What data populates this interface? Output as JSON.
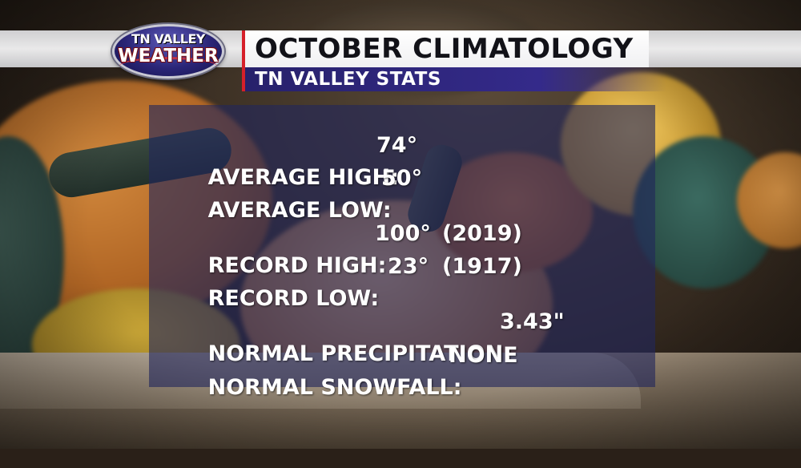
{
  "logo": {
    "line1": "TN VALLEY",
    "line2": "WEATHER"
  },
  "header": {
    "title": "OCTOBER CLIMATOLOGY",
    "subtitle": "TN VALLEY STATS"
  },
  "stats": {
    "average_high": {
      "label": "AVERAGE HIGH:",
      "value": "74°"
    },
    "average_low": {
      "label": "AVERAGE LOW:",
      "value": "50°"
    },
    "record_high": {
      "label": "RECORD HIGH:",
      "value": "100°",
      "year": "(2019)"
    },
    "record_low": {
      "label": "RECORD LOW:",
      "value": "23°",
      "year": "(1917)"
    },
    "normal_precipitation": {
      "label": "NORMAL PRECIPITATION:",
      "value": "3.43\""
    },
    "normal_snowfall": {
      "label": "NORMAL SNOWFALL:",
      "value": "NONE"
    }
  },
  "colors": {
    "title_text": "#121218",
    "subtitle_bar": "#27216b",
    "accent_red": "#d6202a",
    "panel": "#22265c"
  }
}
